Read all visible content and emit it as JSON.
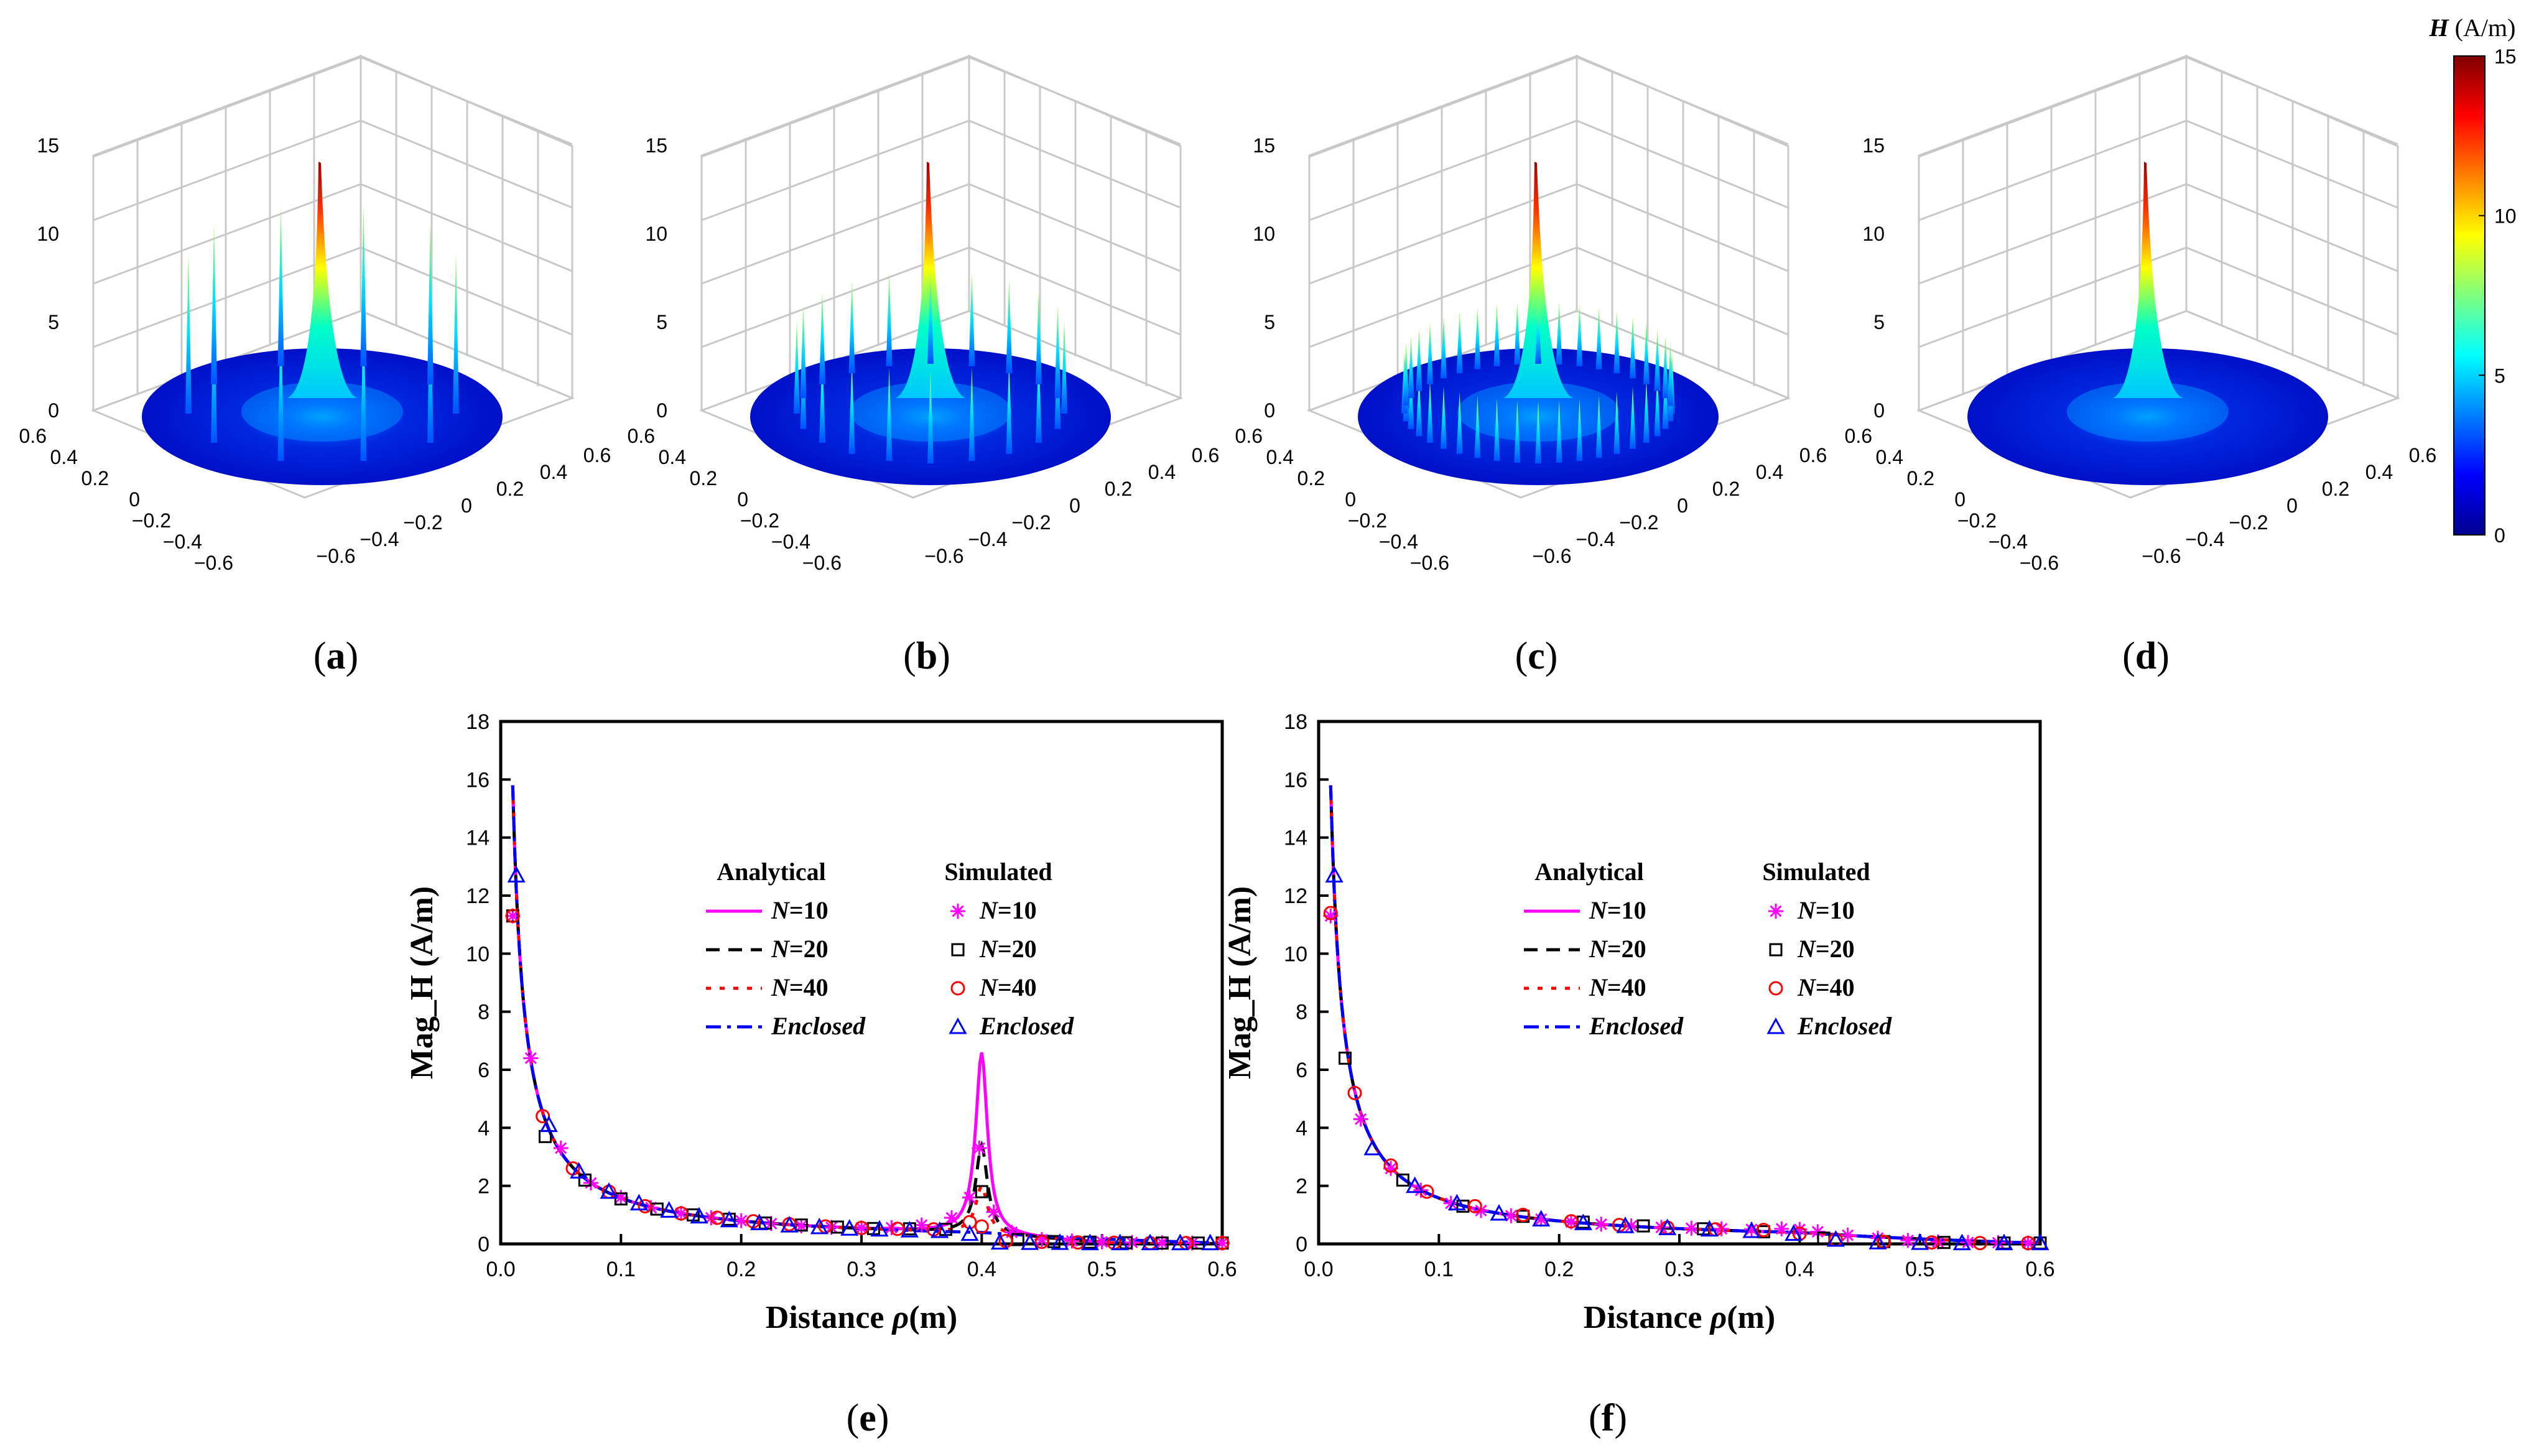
{
  "colorbar": {
    "title_var": "H",
    "title_unit": " (A/m)",
    "ticks": [
      "15",
      "10",
      "5",
      "0"
    ],
    "range": [
      0,
      15
    ]
  },
  "surface_panels": [
    {
      "id": "a",
      "caption": "a",
      "N": 10,
      "z_ticks": [
        "15",
        "10",
        "5",
        "0"
      ]
    },
    {
      "id": "b",
      "caption": "b",
      "N": 20,
      "z_ticks": [
        "15",
        "10",
        "5",
        "0"
      ]
    },
    {
      "id": "c",
      "caption": "c",
      "N": 40,
      "z_ticks": [
        "15",
        "10",
        "5",
        "0"
      ]
    },
    {
      "id": "d",
      "caption": "d",
      "N": 0,
      "z_ticks": [
        "15",
        "10",
        "5",
        "0"
      ]
    }
  ],
  "axis3d_ticks": {
    "left": [
      "0.6",
      "0.4",
      "0.2",
      "0",
      "−0.2",
      "−0.4",
      "−0.6"
    ],
    "right": [
      "−0.6",
      "−0.4",
      "−0.2",
      "0",
      "0.2",
      "0.4",
      "0.6"
    ]
  },
  "chart_data": [
    {
      "type": "line",
      "id": "e",
      "caption": "e",
      "xlabel_prefix": "Distance ",
      "xlabel_var": "ρ",
      "xlabel_unit": "(m)",
      "ylabel": "Mag_H (A/m)",
      "xlim": [
        0.0,
        0.6
      ],
      "ylim": [
        0,
        18
      ],
      "x_ticks": [
        "0.0",
        "0.1",
        "0.2",
        "0.3",
        "0.4",
        "0.5",
        "0.6"
      ],
      "y_ticks": [
        "0",
        "2",
        "4",
        "6",
        "8",
        "10",
        "12",
        "14",
        "16",
        "18"
      ],
      "legend": {
        "analytical_title": "Analytical",
        "simulated_title": "Simulated",
        "entries": [
          {
            "prefix": "N",
            "rest": "=10",
            "color": "#ff00ff"
          },
          {
            "prefix": "N",
            "rest": "=20",
            "color": "#000000"
          },
          {
            "prefix": "N",
            "rest": "=40",
            "color": "#ff0000"
          },
          {
            "prefix": "",
            "rest": "Enclosed",
            "color": "#0000ff"
          }
        ]
      },
      "peak": {
        "x": 0.4,
        "values": [
          6.2,
          3.0,
          1.6,
          0.0
        ]
      },
      "series": [
        {
          "name": "N=10 simulated",
          "x": [
            0.01,
            0.025,
            0.05,
            0.075,
            0.1,
            0.125,
            0.15,
            0.175,
            0.2,
            0.225,
            0.25,
            0.275,
            0.3,
            0.325,
            0.35,
            0.375,
            0.39,
            0.398,
            0.41,
            0.425,
            0.45,
            0.475,
            0.5,
            0.525,
            0.55,
            0.575,
            0.6
          ],
          "y": [
            11.3,
            6.4,
            3.3,
            2.1,
            1.6,
            1.25,
            1.05,
            0.9,
            0.8,
            0.7,
            0.62,
            0.57,
            0.55,
            0.56,
            0.65,
            0.9,
            1.6,
            3.3,
            1.1,
            0.4,
            0.15,
            0.1,
            0.07,
            0.05,
            0.04,
            0.03,
            0.03
          ]
        },
        {
          "name": "N=20 simulated",
          "x": [
            0.01,
            0.037,
            0.07,
            0.1,
            0.13,
            0.16,
            0.19,
            0.22,
            0.25,
            0.28,
            0.31,
            0.34,
            0.37,
            0.4,
            0.43,
            0.46,
            0.49,
            0.52,
            0.55,
            0.58,
            0.6
          ],
          "y": [
            11.3,
            3.7,
            2.2,
            1.55,
            1.2,
            1.0,
            0.85,
            0.72,
            0.65,
            0.58,
            0.53,
            0.52,
            0.5,
            1.8,
            0.15,
            0.08,
            0.06,
            0.04,
            0.03,
            0.03,
            0.03
          ]
        },
        {
          "name": "N=40 simulated",
          "x": [
            0.01,
            0.035,
            0.06,
            0.09,
            0.12,
            0.15,
            0.18,
            0.21,
            0.24,
            0.27,
            0.3,
            0.33,
            0.36,
            0.39,
            0.4,
            0.42,
            0.45,
            0.48,
            0.51,
            0.54,
            0.57,
            0.6
          ],
          "y": [
            11.3,
            4.4,
            2.6,
            1.8,
            1.3,
            1.05,
            0.9,
            0.78,
            0.68,
            0.6,
            0.55,
            0.52,
            0.5,
            0.75,
            0.6,
            0.1,
            0.07,
            0.05,
            0.04,
            0.03,
            0.03,
            0.03
          ]
        },
        {
          "name": "Enclosed simulated",
          "x": [
            0.013,
            0.04,
            0.065,
            0.09,
            0.115,
            0.14,
            0.165,
            0.19,
            0.215,
            0.24,
            0.265,
            0.29,
            0.315,
            0.34,
            0.365,
            0.39,
            0.415,
            0.44,
            0.465,
            0.49,
            0.515,
            0.54,
            0.565,
            0.59
          ],
          "y": [
            12.7,
            4.1,
            2.5,
            1.8,
            1.4,
            1.15,
            0.95,
            0.82,
            0.72,
            0.64,
            0.58,
            0.53,
            0.5,
            0.47,
            0.45,
            0.35,
            0.05,
            0.04,
            0.04,
            0.03,
            0.03,
            0.03,
            0.03,
            0.03
          ]
        }
      ]
    },
    {
      "type": "line",
      "id": "f",
      "caption": "f",
      "xlabel_prefix": "Distance ",
      "xlabel_var": "ρ",
      "xlabel_unit": "(m)",
      "ylabel": "Mag_H (A/m)",
      "xlim": [
        0.0,
        0.6
      ],
      "ylim": [
        0,
        18
      ],
      "x_ticks": [
        "0.0",
        "0.1",
        "0.2",
        "0.3",
        "0.4",
        "0.5",
        "0.6"
      ],
      "y_ticks": [
        "0",
        "2",
        "4",
        "6",
        "8",
        "10",
        "12",
        "14",
        "16",
        "18"
      ],
      "legend": {
        "analytical_title": "Analytical",
        "simulated_title": "Simulated",
        "entries": [
          {
            "prefix": "N",
            "rest": "=10",
            "color": "#ff00ff"
          },
          {
            "prefix": "N",
            "rest": "=20",
            "color": "#000000"
          },
          {
            "prefix": "N",
            "rest": "=40",
            "color": "#ff0000"
          },
          {
            "prefix": "",
            "rest": "Enclosed",
            "color": "#0000ff"
          }
        ]
      },
      "peak": {
        "x": 0.4,
        "values": [
          0.0,
          0.0,
          0.0,
          0.0
        ]
      },
      "series": [
        {
          "name": "N=10 simulated",
          "x": [
            0.01,
            0.035,
            0.06,
            0.085,
            0.11,
            0.135,
            0.16,
            0.185,
            0.21,
            0.235,
            0.26,
            0.285,
            0.31,
            0.335,
            0.36,
            0.385,
            0.4,
            0.415,
            0.44,
            0.465,
            0.49,
            0.515,
            0.54,
            0.565,
            0.59
          ],
          "y": [
            11.3,
            4.3,
            2.6,
            1.85,
            1.4,
            1.15,
            0.97,
            0.85,
            0.76,
            0.68,
            0.62,
            0.57,
            0.54,
            0.52,
            0.5,
            0.52,
            0.5,
            0.42,
            0.3,
            0.2,
            0.12,
            0.07,
            0.05,
            0.04,
            0.03
          ]
        },
        {
          "name": "N=20 simulated",
          "x": [
            0.022,
            0.07,
            0.12,
            0.17,
            0.22,
            0.27,
            0.32,
            0.37,
            0.42,
            0.47,
            0.52,
            0.57,
            0.6
          ],
          "y": [
            6.4,
            2.2,
            1.3,
            0.95,
            0.75,
            0.62,
            0.52,
            0.42,
            0.2,
            0.08,
            0.05,
            0.03,
            0.03
          ]
        },
        {
          "name": "N=40 simulated",
          "x": [
            0.01,
            0.03,
            0.06,
            0.09,
            0.13,
            0.17,
            0.21,
            0.25,
            0.29,
            0.33,
            0.37,
            0.4,
            0.43,
            0.47,
            0.51,
            0.55,
            0.59
          ],
          "y": [
            11.4,
            5.2,
            2.7,
            1.8,
            1.3,
            1.0,
            0.78,
            0.65,
            0.56,
            0.5,
            0.48,
            0.35,
            0.15,
            0.07,
            0.05,
            0.03,
            0.03
          ]
        },
        {
          "name": "Enclosed simulated",
          "x": [
            0.013,
            0.045,
            0.08,
            0.115,
            0.15,
            0.185,
            0.22,
            0.255,
            0.29,
            0.325,
            0.36,
            0.395,
            0.43,
            0.465,
            0.5,
            0.535,
            0.57,
            0.6
          ],
          "y": [
            12.7,
            3.3,
            2.0,
            1.4,
            1.05,
            0.85,
            0.72,
            0.62,
            0.55,
            0.5,
            0.45,
            0.35,
            0.15,
            0.06,
            0.04,
            0.03,
            0.03,
            0.03
          ]
        }
      ]
    }
  ]
}
